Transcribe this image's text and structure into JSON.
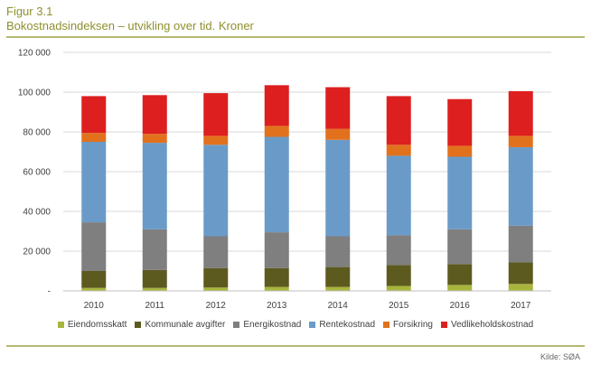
{
  "figure": {
    "label": "Figur 3.1",
    "subtitle": "Bokostnadsindeksen – utvikling over tid. Kroner",
    "source": "Kilde: SØA"
  },
  "chart_data": {
    "type": "bar",
    "stacked": true,
    "title": "Bokostnadsindeksen – utvikling over tid. Kroner",
    "xlabel": "",
    "ylabel": "",
    "categories": [
      "2010",
      "2011",
      "2012",
      "2013",
      "2014",
      "2015",
      "2016",
      "2017"
    ],
    "ylim": [
      0,
      120000
    ],
    "yticks": [
      0,
      20000,
      40000,
      60000,
      80000,
      100000,
      120000
    ],
    "ytick_labels": [
      "-",
      "20 000",
      "40 000",
      "60 000",
      "80 000",
      "100 000",
      "120 000"
    ],
    "grid": true,
    "legend_position": "bottom",
    "series": [
      {
        "name": "Eiendomsskatt",
        "color": "#a8b53d",
        "values": [
          1500,
          1500,
          1700,
          2000,
          2000,
          2500,
          3000,
          3500
        ]
      },
      {
        "name": "Kommunale avgifter",
        "color": "#5d5a20",
        "values": [
          8500,
          9000,
          9800,
          9500,
          10000,
          10500,
          10500,
          10800
        ]
      },
      {
        "name": "Energikostnad",
        "color": "#7f7f7f",
        "values": [
          24500,
          20500,
          16000,
          18000,
          15500,
          15000,
          17500,
          18500
        ]
      },
      {
        "name": "Rentekostnad",
        "color": "#6a9bc8",
        "values": [
          40500,
          43500,
          46000,
          48000,
          48500,
          40000,
          36500,
          39500
        ]
      },
      {
        "name": "Forsikring",
        "color": "#e2711d",
        "values": [
          4500,
          4500,
          4500,
          5500,
          5500,
          5500,
          5500,
          5700
        ]
      },
      {
        "name": "Vedlikeholdskostnad",
        "color": "#dd1f1f",
        "values": [
          18500,
          19500,
          21500,
          20500,
          21000,
          24500,
          23500,
          22500
        ]
      }
    ]
  }
}
